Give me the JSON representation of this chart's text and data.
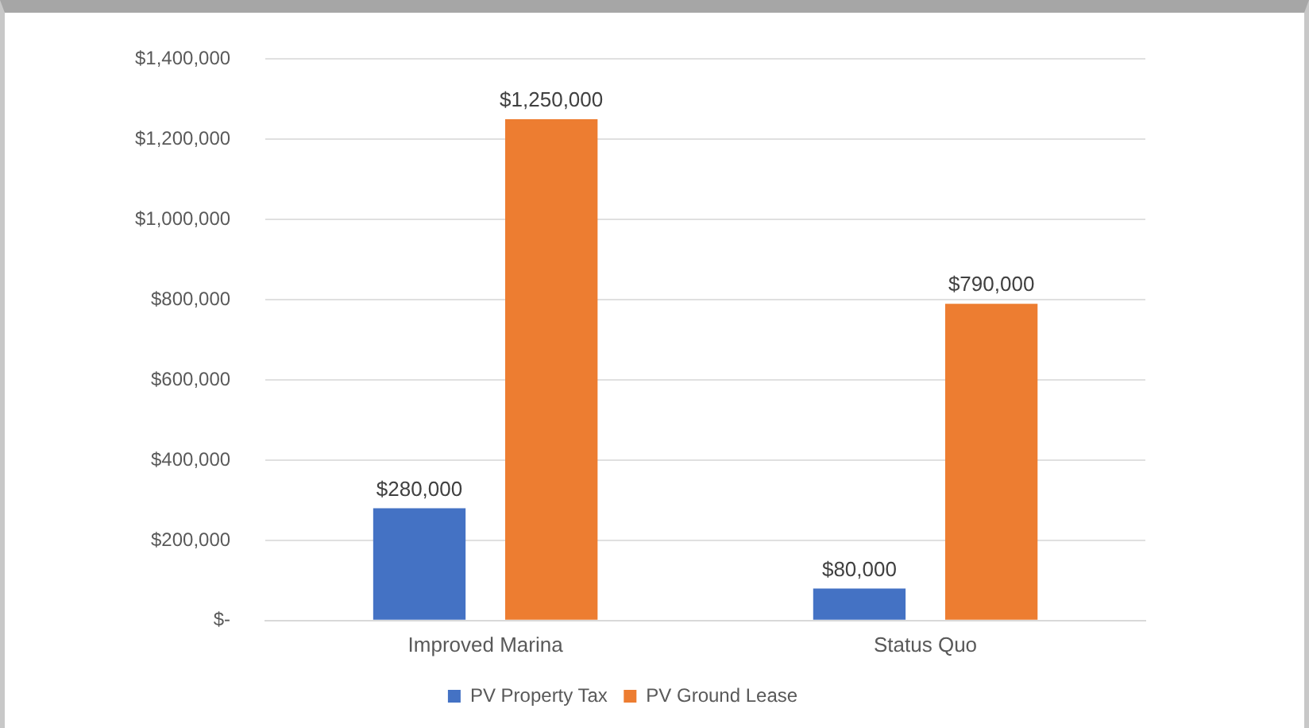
{
  "chart_data": {
    "type": "bar",
    "categories": [
      "Improved Marina",
      "Status Quo"
    ],
    "series": [
      {
        "name": "PV Property Tax",
        "color": "#4472c4",
        "values": [
          280000,
          80000
        ],
        "value_labels": [
          "$280,000",
          "$80,000"
        ]
      },
      {
        "name": "PV Ground Lease",
        "color": "#ed7d31",
        "values": [
          1250000,
          790000
        ],
        "value_labels": [
          "$1,250,000",
          "$790,000"
        ]
      }
    ],
    "ylim": [
      0,
      1400000
    ],
    "yticks": [
      {
        "value": 0,
        "label": "$-"
      },
      {
        "value": 200000,
        "label": "$200,000"
      },
      {
        "value": 400000,
        "label": "$400,000"
      },
      {
        "value": 600000,
        "label": "$600,000"
      },
      {
        "value": 800000,
        "label": "$800,000"
      },
      {
        "value": 1000000,
        "label": "$1,000,000"
      },
      {
        "value": 1200000,
        "label": "$1,200,000"
      },
      {
        "value": 1400000,
        "label": "$1,400,000"
      }
    ],
    "grid": "y",
    "legend": "bottom"
  }
}
